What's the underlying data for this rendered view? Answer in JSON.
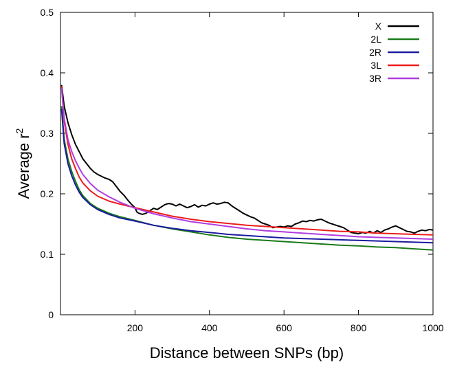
{
  "chart_data": {
    "type": "line",
    "xlabel": "Distance between SNPs (bp)",
    "ylabel_main": "Average r",
    "ylabel_sup": "2",
    "xlim": [
      0,
      1000
    ],
    "ylim": [
      0,
      0.5
    ],
    "x_ticks": [
      200,
      400,
      600,
      800,
      1000
    ],
    "x_tick_labels": [
      "200",
      "400",
      "600",
      "800",
      "1000"
    ],
    "y_ticks": [
      0,
      0.1,
      0.2,
      0.3,
      0.4,
      0.5
    ],
    "y_tick_labels": [
      "0",
      "0.1",
      "0.2",
      "0.3",
      "0.4",
      "0.5"
    ],
    "grid": false,
    "legend_position": "top-right",
    "series": [
      {
        "name": "X",
        "color": "#000000",
        "points": [
          [
            3,
            0.38
          ],
          [
            10,
            0.345
          ],
          [
            20,
            0.318
          ],
          [
            30,
            0.298
          ],
          [
            40,
            0.282
          ],
          [
            50,
            0.27
          ],
          [
            60,
            0.258
          ],
          [
            70,
            0.25
          ],
          [
            80,
            0.242
          ],
          [
            90,
            0.236
          ],
          [
            100,
            0.232
          ],
          [
            110,
            0.229
          ],
          [
            120,
            0.226
          ],
          [
            130,
            0.224
          ],
          [
            140,
            0.22
          ],
          [
            150,
            0.212
          ],
          [
            160,
            0.204
          ],
          [
            170,
            0.198
          ],
          [
            180,
            0.19
          ],
          [
            190,
            0.183
          ],
          [
            200,
            0.177
          ],
          [
            205,
            0.17
          ],
          [
            210,
            0.168
          ],
          [
            220,
            0.166
          ],
          [
            230,
            0.168
          ],
          [
            240,
            0.172
          ],
          [
            250,
            0.176
          ],
          [
            260,
            0.174
          ],
          [
            270,
            0.178
          ],
          [
            280,
            0.182
          ],
          [
            290,
            0.184
          ],
          [
            300,
            0.183
          ],
          [
            310,
            0.18
          ],
          [
            320,
            0.183
          ],
          [
            330,
            0.18
          ],
          [
            340,
            0.177
          ],
          [
            350,
            0.179
          ],
          [
            360,
            0.182
          ],
          [
            370,
            0.178
          ],
          [
            380,
            0.181
          ],
          [
            390,
            0.18
          ],
          [
            400,
            0.183
          ],
          [
            410,
            0.185
          ],
          [
            420,
            0.183
          ],
          [
            430,
            0.184
          ],
          [
            440,
            0.186
          ],
          [
            450,
            0.185
          ],
          [
            460,
            0.18
          ],
          [
            470,
            0.176
          ],
          [
            480,
            0.172
          ],
          [
            490,
            0.168
          ],
          [
            500,
            0.165
          ],
          [
            510,
            0.162
          ],
          [
            520,
            0.16
          ],
          [
            530,
            0.156
          ],
          [
            540,
            0.152
          ],
          [
            550,
            0.15
          ],
          [
            560,
            0.148
          ],
          [
            570,
            0.144
          ],
          [
            580,
            0.145
          ],
          [
            590,
            0.146
          ],
          [
            600,
            0.145
          ],
          [
            610,
            0.147
          ],
          [
            620,
            0.146
          ],
          [
            630,
            0.15
          ],
          [
            640,
            0.152
          ],
          [
            650,
            0.155
          ],
          [
            660,
            0.154
          ],
          [
            670,
            0.156
          ],
          [
            680,
            0.155
          ],
          [
            690,
            0.157
          ],
          [
            700,
            0.158
          ],
          [
            710,
            0.155
          ],
          [
            720,
            0.152
          ],
          [
            730,
            0.15
          ],
          [
            740,
            0.148
          ],
          [
            750,
            0.146
          ],
          [
            760,
            0.144
          ],
          [
            770,
            0.14
          ],
          [
            780,
            0.136
          ],
          [
            790,
            0.135
          ],
          [
            800,
            0.134
          ],
          [
            810,
            0.136
          ],
          [
            820,
            0.135
          ],
          [
            830,
            0.138
          ],
          [
            840,
            0.135
          ],
          [
            850,
            0.139
          ],
          [
            860,
            0.136
          ],
          [
            870,
            0.14
          ],
          [
            880,
            0.142
          ],
          [
            890,
            0.145
          ],
          [
            900,
            0.147
          ],
          [
            910,
            0.144
          ],
          [
            920,
            0.141
          ],
          [
            930,
            0.138
          ],
          [
            940,
            0.137
          ],
          [
            950,
            0.135
          ],
          [
            960,
            0.138
          ],
          [
            970,
            0.14
          ],
          [
            980,
            0.139
          ],
          [
            990,
            0.141
          ],
          [
            1000,
            0.14
          ]
        ]
      },
      {
        "name": "2L",
        "color": "#1a7a1a",
        "points": [
          [
            3,
            0.345
          ],
          [
            10,
            0.29
          ],
          [
            20,
            0.258
          ],
          [
            30,
            0.237
          ],
          [
            40,
            0.221
          ],
          [
            50,
            0.207
          ],
          [
            60,
            0.197
          ],
          [
            80,
            0.184
          ],
          [
            100,
            0.176
          ],
          [
            130,
            0.168
          ],
          [
            160,
            0.162
          ],
          [
            200,
            0.156
          ],
          [
            250,
            0.148
          ],
          [
            300,
            0.142
          ],
          [
            350,
            0.137
          ],
          [
            400,
            0.132
          ],
          [
            450,
            0.128
          ],
          [
            500,
            0.125
          ],
          [
            550,
            0.123
          ],
          [
            600,
            0.121
          ],
          [
            650,
            0.119
          ],
          [
            700,
            0.117
          ],
          [
            750,
            0.115
          ],
          [
            800,
            0.114
          ],
          [
            850,
            0.112
          ],
          [
            900,
            0.111
          ],
          [
            950,
            0.109
          ],
          [
            1000,
            0.107
          ]
        ]
      },
      {
        "name": "2R",
        "color": "#1a1aa0",
        "points": [
          [
            3,
            0.34
          ],
          [
            10,
            0.283
          ],
          [
            20,
            0.25
          ],
          [
            30,
            0.23
          ],
          [
            40,
            0.215
          ],
          [
            50,
            0.203
          ],
          [
            60,
            0.194
          ],
          [
            80,
            0.182
          ],
          [
            100,
            0.174
          ],
          [
            130,
            0.166
          ],
          [
            160,
            0.16
          ],
          [
            200,
            0.155
          ],
          [
            250,
            0.148
          ],
          [
            300,
            0.143
          ],
          [
            350,
            0.139
          ],
          [
            400,
            0.136
          ],
          [
            450,
            0.133
          ],
          [
            500,
            0.131
          ],
          [
            550,
            0.129
          ],
          [
            600,
            0.127
          ],
          [
            650,
            0.126
          ],
          [
            700,
            0.125
          ],
          [
            750,
            0.124
          ],
          [
            800,
            0.123
          ],
          [
            850,
            0.122
          ],
          [
            900,
            0.121
          ],
          [
            950,
            0.12
          ],
          [
            1000,
            0.119
          ]
        ]
      },
      {
        "name": "3L",
        "color": "#ee1c1c",
        "points": [
          [
            3,
            0.378
          ],
          [
            10,
            0.32
          ],
          [
            20,
            0.282
          ],
          [
            30,
            0.258
          ],
          [
            40,
            0.242
          ],
          [
            50,
            0.228
          ],
          [
            60,
            0.218
          ],
          [
            80,
            0.205
          ],
          [
            100,
            0.196
          ],
          [
            130,
            0.188
          ],
          [
            160,
            0.183
          ],
          [
            200,
            0.177
          ],
          [
            250,
            0.17
          ],
          [
            300,
            0.163
          ],
          [
            350,
            0.158
          ],
          [
            400,
            0.154
          ],
          [
            450,
            0.151
          ],
          [
            500,
            0.148
          ],
          [
            550,
            0.146
          ],
          [
            600,
            0.144
          ],
          [
            650,
            0.142
          ],
          [
            700,
            0.14
          ],
          [
            750,
            0.138
          ],
          [
            800,
            0.137
          ],
          [
            850,
            0.135
          ],
          [
            900,
            0.134
          ],
          [
            950,
            0.133
          ],
          [
            1000,
            0.132
          ]
        ]
      },
      {
        "name": "3R",
        "color": "#b03ce0",
        "points": [
          [
            3,
            0.375
          ],
          [
            10,
            0.325
          ],
          [
            20,
            0.29
          ],
          [
            30,
            0.27
          ],
          [
            40,
            0.255
          ],
          [
            50,
            0.243
          ],
          [
            60,
            0.232
          ],
          [
            80,
            0.217
          ],
          [
            100,
            0.206
          ],
          [
            130,
            0.195
          ],
          [
            160,
            0.186
          ],
          [
            200,
            0.176
          ],
          [
            250,
            0.167
          ],
          [
            300,
            0.16
          ],
          [
            350,
            0.154
          ],
          [
            400,
            0.15
          ],
          [
            450,
            0.146
          ],
          [
            500,
            0.142
          ],
          [
            550,
            0.139
          ],
          [
            600,
            0.137
          ],
          [
            650,
            0.135
          ],
          [
            700,
            0.133
          ],
          [
            750,
            0.131
          ],
          [
            800,
            0.129
          ],
          [
            850,
            0.128
          ],
          [
            900,
            0.127
          ],
          [
            950,
            0.126
          ],
          [
            1000,
            0.125
          ]
        ]
      }
    ]
  }
}
